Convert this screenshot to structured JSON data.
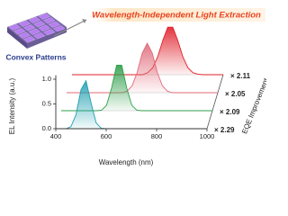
{
  "chart_data": {
    "type": "line",
    "title": "Wavelength-Independent Light Extraction",
    "inset_label": "Convex Patterns",
    "xlabel": "Wavelength (nm)",
    "ylabel": "EL Intensity (a.u.)",
    "zlabel": "EQE Improvement",
    "x": [
      400,
      420,
      440,
      460,
      480,
      500,
      520,
      540,
      560,
      580,
      600,
      620,
      640,
      660,
      680,
      700,
      720,
      740,
      760,
      780,
      800,
      820,
      840,
      860,
      880,
      900,
      920,
      940,
      960,
      980,
      1000
    ],
    "series": [
      {
        "color": "#1f9fb0",
        "values": [
          0,
          0,
          0,
          0.04,
          0.28,
          0.79,
          0.97,
          0.52,
          0.12,
          0.01,
          0,
          0,
          0,
          0,
          0,
          0,
          0,
          0,
          0,
          0,
          0,
          0,
          0,
          0,
          0,
          0,
          0,
          0,
          0,
          0,
          0
        ]
      },
      {
        "color": "#2e9e4a",
        "values": [
          0,
          0,
          0,
          0,
          0,
          0,
          0,
          0,
          0.01,
          0.11,
          0.46,
          0.92,
          0.92,
          0.46,
          0.11,
          0.01,
          0,
          0,
          0,
          0,
          0,
          0,
          0,
          0,
          0,
          0,
          0,
          0,
          0,
          0,
          0
        ]
      },
      {
        "color": "#e06a7a",
        "values": [
          0,
          0,
          0,
          0,
          0,
          0,
          0,
          0,
          0,
          0,
          0,
          0,
          0.03,
          0.14,
          0.41,
          0.8,
          1,
          0.8,
          0.41,
          0.14,
          0.03,
          0,
          0,
          0,
          0,
          0,
          0,
          0,
          0,
          0,
          0
        ]
      },
      {
        "color": "#e0202a",
        "values": [
          0,
          0,
          0,
          0,
          0,
          0,
          0,
          0,
          0,
          0,
          0,
          0,
          0,
          0,
          0,
          0.04,
          0.14,
          0.36,
          0.69,
          0.96,
          0.96,
          0.69,
          0.36,
          0.14,
          0.04,
          0.01,
          0,
          0,
          0,
          0,
          0
        ]
      }
    ],
    "annotations": [
      "× 2.29",
      "× 2.09",
      "× 2.05",
      "× 2.11"
    ],
    "xlim": [
      400,
      1000
    ],
    "xticks": [
      400,
      600,
      800,
      1000
    ],
    "ylim": [
      0,
      1.08
    ],
    "yticks": [
      {
        "value": 0,
        "label": "0.0"
      },
      {
        "value": 0.5,
        "label": "0.5"
      },
      {
        "value": 1,
        "label": "1.0"
      }
    ]
  }
}
